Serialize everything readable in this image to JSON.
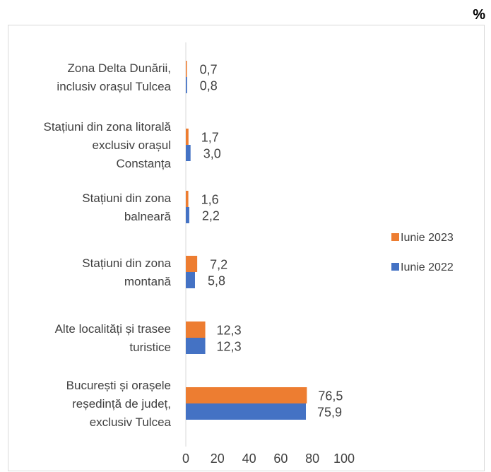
{
  "unit_label": "%",
  "chart_data": {
    "type": "bar",
    "orientation": "horizontal",
    "categories": [
      [
        "Zona Delta Dunării,",
        "inclusiv orașul Tulcea"
      ],
      [
        "Stațiuni din zona litorală",
        "exclusiv orașul",
        "Constanța"
      ],
      [
        "Stațiuni din zona",
        "balneară"
      ],
      [
        "Stațiuni din zona",
        "montană"
      ],
      [
        "Alte localități și trasee",
        "turistice"
      ],
      [
        "București și orașele",
        "reședință de județ,",
        "exclusiv Tulcea"
      ]
    ],
    "series": [
      {
        "name": "Iunie 2023",
        "color": "#ed7d31",
        "values": [
          0.7,
          1.7,
          1.6,
          7.2,
          12.3,
          76.5
        ],
        "labels": [
          "0,7",
          "1,7",
          "1,6",
          "7,2",
          "12,3",
          "76,5"
        ]
      },
      {
        "name": "Iunie 2022",
        "color": "#4472c4",
        "values": [
          0.8,
          3.0,
          2.2,
          5.8,
          12.3,
          75.9
        ],
        "labels": [
          "0,8",
          "3,0",
          "2,2",
          "5,8",
          "12,3",
          "75,9"
        ]
      }
    ],
    "xlim": [
      0,
      100
    ],
    "xticks": [
      0,
      20,
      40,
      60,
      80,
      100
    ],
    "grid": false,
    "legend_position": "right"
  }
}
